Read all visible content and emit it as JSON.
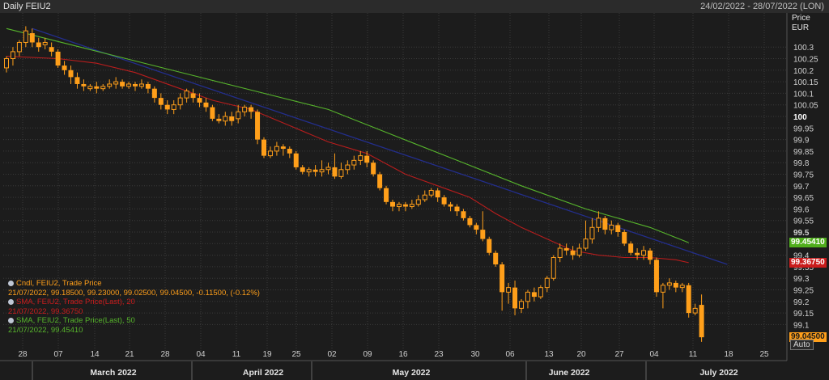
{
  "header": {
    "title": "Daily FEIU2",
    "date_range": "24/02/2022 - 28/07/2022 (LON)"
  },
  "axis": {
    "price_label": "Price",
    "currency_label": "EUR",
    "auto_label": "Auto"
  },
  "badges": {
    "sma50": "99.45410",
    "sma20": "99.36750",
    "last": "99.04500"
  },
  "legend": {
    "cndl_title": "Cndl, FEIU2, Trade Price",
    "cndl_values": "21/07/2022, 99.18500, 99.23000, 99.02500, 99.04500, -0.11500, (-0.12%)",
    "sma20_title": "SMA, FEIU2, Trade Price(Last), 20",
    "sma20_values": "21/07/2022, 99.36750",
    "sma50_title": "SMA, FEIU2, Trade Price(Last), 50",
    "sma50_values": "21/07/2022, 99.45410"
  },
  "colors": {
    "background": "#1c1c1c",
    "candle": "#ff9f1a",
    "sma20": "#b81d1d",
    "sma50": "#57b52c",
    "trend": "#232e8c",
    "grid": "#3a3a3a",
    "last_badge": "#ff9f1a",
    "sma20_badge": "#c91c1c",
    "sma50_badge": "#4fae1c"
  },
  "chart_data": {
    "type": "candlestick",
    "ylim": [
      99.0,
      100.4
    ],
    "y_ticks": [
      "100.3",
      "100.25",
      "100.2",
      "100.15",
      "100.1",
      "100.05",
      "100",
      "99.95",
      "99.9",
      "99.85",
      "99.8",
      "99.75",
      "99.7",
      "99.65",
      "99.6",
      "99.55",
      "99.5",
      "99.45",
      "99.4",
      "99.35",
      "99.3",
      "99.25",
      "99.2",
      "99.15",
      "99.1"
    ],
    "x_day_ticks": [
      "28",
      "07",
      "14",
      "21",
      "28",
      "04",
      "11",
      "19",
      "25",
      "02",
      "09",
      "16",
      "23",
      "30",
      "06",
      "13",
      "20",
      "27",
      "04",
      "11",
      "18",
      "25"
    ],
    "x_month_labels": [
      "March 2022",
      "April 2022",
      "May 2022",
      "June 2022",
      "July 2022"
    ],
    "candles": [
      [
        100.21,
        100.25,
        100.19,
        100.26
      ],
      [
        100.25,
        100.28,
        100.22,
        100.3
      ],
      [
        100.28,
        100.32,
        100.26,
        100.33
      ],
      [
        100.32,
        100.37,
        100.3,
        100.39
      ],
      [
        100.36,
        100.32,
        100.3,
        100.38
      ],
      [
        100.32,
        100.3,
        100.28,
        100.34
      ],
      [
        100.31,
        100.32,
        100.29,
        100.34
      ],
      [
        100.3,
        100.28,
        100.26,
        100.32
      ],
      [
        100.28,
        100.22,
        100.21,
        100.29
      ],
      [
        100.22,
        100.2,
        100.18,
        100.24
      ],
      [
        100.2,
        100.17,
        100.14,
        100.22
      ],
      [
        100.17,
        100.14,
        100.12,
        100.19
      ],
      [
        100.14,
        100.13,
        100.11,
        100.16
      ],
      [
        100.12,
        100.13,
        100.11,
        100.14
      ],
      [
        100.13,
        100.12,
        100.1,
        100.15
      ],
      [
        100.12,
        100.13,
        100.11,
        100.14
      ],
      [
        100.13,
        100.14,
        100.12,
        100.16
      ],
      [
        100.14,
        100.15,
        100.12,
        100.17
      ],
      [
        100.15,
        100.13,
        100.12,
        100.16
      ],
      [
        100.13,
        100.14,
        100.12,
        100.15
      ],
      [
        100.14,
        100.13,
        100.11,
        100.15
      ],
      [
        100.13,
        100.14,
        100.12,
        100.16
      ],
      [
        100.14,
        100.12,
        100.1,
        100.15
      ],
      [
        100.12,
        100.08,
        100.06,
        100.13
      ],
      [
        100.08,
        100.05,
        100.03,
        100.1
      ],
      [
        100.05,
        100.03,
        100.01,
        100.07
      ],
      [
        100.03,
        100.05,
        100.01,
        100.07
      ],
      [
        100.05,
        100.08,
        100.03,
        100.1
      ],
      [
        100.08,
        100.11,
        100.06,
        100.12
      ],
      [
        100.1,
        100.08,
        100.06,
        100.12
      ],
      [
        100.08,
        100.06,
        100.04,
        100.1
      ],
      [
        100.06,
        100.04,
        100.02,
        100.08
      ],
      [
        100.04,
        99.99,
        99.98,
        100.05
      ],
      [
        99.99,
        99.98,
        99.97,
        100.01
      ],
      [
        99.98,
        100.0,
        99.96,
        100.02
      ],
      [
        100.0,
        99.98,
        99.96,
        100.02
      ],
      [
        99.99,
        100.02,
        99.97,
        100.05
      ],
      [
        100.02,
        100.04,
        100.0,
        100.05
      ],
      [
        100.04,
        100.02,
        99.99,
        100.05
      ],
      [
        100.02,
        99.9,
        99.88,
        100.03
      ],
      [
        99.9,
        99.83,
        99.82,
        99.91
      ],
      [
        99.83,
        99.85,
        99.82,
        99.87
      ],
      [
        99.85,
        99.87,
        99.83,
        99.89
      ],
      [
        99.87,
        99.86,
        99.83,
        99.88
      ],
      [
        99.86,
        99.84,
        99.82,
        99.87
      ],
      [
        99.84,
        99.78,
        99.77,
        99.85
      ],
      [
        99.78,
        99.76,
        99.75,
        99.79
      ],
      [
        99.76,
        99.77,
        99.74,
        99.78
      ],
      [
        99.77,
        99.76,
        99.74,
        99.79
      ],
      [
        99.76,
        99.77,
        99.74,
        99.81
      ],
      [
        99.77,
        99.78,
        99.75,
        99.8
      ],
      [
        99.78,
        99.74,
        99.73,
        99.84
      ],
      [
        99.74,
        99.77,
        99.73,
        99.8
      ],
      [
        99.77,
        99.79,
        99.75,
        99.81
      ],
      [
        99.79,
        99.81,
        99.77,
        99.83
      ],
      [
        99.81,
        99.83,
        99.79,
        99.85
      ],
      [
        99.83,
        99.8,
        99.78,
        99.85
      ],
      [
        99.8,
        99.75,
        99.74,
        99.81
      ],
      [
        99.75,
        99.69,
        99.68,
        99.76
      ],
      [
        99.69,
        99.63,
        99.62,
        99.7
      ],
      [
        99.63,
        99.61,
        99.59,
        99.64
      ],
      [
        99.61,
        99.62,
        99.59,
        99.63
      ],
      [
        99.62,
        99.61,
        99.59,
        99.63
      ],
      [
        99.61,
        99.62,
        99.6,
        99.64
      ],
      [
        99.62,
        99.64,
        99.61,
        99.66
      ],
      [
        99.64,
        99.66,
        99.63,
        99.68
      ],
      [
        99.66,
        99.68,
        99.65,
        99.69
      ],
      [
        99.68,
        99.65,
        99.63,
        99.69
      ],
      [
        99.65,
        99.62,
        99.61,
        99.66
      ],
      [
        99.62,
        99.61,
        99.59,
        99.63
      ],
      [
        99.61,
        99.59,
        99.57,
        99.62
      ],
      [
        99.59,
        99.56,
        99.55,
        99.6
      ],
      [
        99.56,
        99.53,
        99.52,
        99.57
      ],
      [
        99.53,
        99.51,
        99.49,
        99.54
      ],
      [
        99.51,
        99.47,
        99.46,
        99.59
      ],
      [
        99.47,
        99.41,
        99.4,
        99.48
      ],
      [
        99.41,
        99.36,
        99.35,
        99.42
      ],
      [
        99.36,
        99.24,
        99.16,
        99.37
      ],
      [
        99.24,
        99.26,
        99.19,
        99.28
      ],
      [
        99.26,
        99.17,
        99.14,
        99.29
      ],
      [
        99.17,
        99.2,
        99.15,
        99.21
      ],
      [
        99.2,
        99.24,
        99.17,
        99.25
      ],
      [
        99.24,
        99.22,
        99.2,
        99.26
      ],
      [
        99.22,
        99.26,
        99.21,
        99.27
      ],
      [
        99.26,
        99.3,
        99.24,
        99.31
      ],
      [
        99.3,
        99.39,
        99.29,
        99.4
      ],
      [
        99.39,
        99.43,
        99.37,
        99.45
      ],
      [
        99.43,
        99.42,
        99.4,
        99.45
      ],
      [
        99.42,
        99.4,
        99.38,
        99.44
      ],
      [
        99.4,
        99.43,
        99.39,
        99.45
      ],
      [
        99.43,
        99.47,
        99.42,
        99.55
      ],
      [
        99.47,
        99.52,
        99.45,
        99.56
      ],
      [
        99.52,
        99.56,
        99.5,
        99.59
      ],
      [
        99.56,
        99.51,
        99.49,
        99.57
      ],
      [
        99.51,
        99.53,
        99.49,
        99.55
      ],
      [
        99.53,
        99.5,
        99.48,
        99.54
      ],
      [
        99.5,
        99.45,
        99.44,
        99.51
      ],
      [
        99.45,
        99.41,
        99.4,
        99.46
      ],
      [
        99.41,
        99.4,
        99.38,
        99.43
      ],
      [
        99.4,
        99.42,
        99.38,
        99.44
      ],
      [
        99.42,
        99.38,
        99.36,
        99.43
      ],
      [
        99.38,
        99.24,
        99.22,
        99.39
      ],
      [
        99.24,
        99.27,
        99.17,
        99.28
      ],
      [
        99.27,
        99.28,
        99.25,
        99.3
      ],
      [
        99.28,
        99.26,
        99.24,
        99.29
      ],
      [
        99.26,
        99.27,
        99.24,
        99.28
      ],
      [
        99.27,
        99.15,
        99.13,
        99.28
      ],
      [
        99.15,
        99.17,
        99.14,
        99.19
      ],
      [
        99.185,
        99.045,
        99.025,
        99.23
      ]
    ],
    "sma20": [
      [
        0,
        100.26
      ],
      [
        8,
        100.25
      ],
      [
        14,
        100.23
      ],
      [
        20,
        100.19
      ],
      [
        26,
        100.13
      ],
      [
        32,
        100.07
      ],
      [
        38,
        100.03
      ],
      [
        44,
        99.96
      ],
      [
        50,
        99.89
      ],
      [
        56,
        99.84
      ],
      [
        62,
        99.75
      ],
      [
        68,
        99.69
      ],
      [
        72,
        99.65
      ],
      [
        76,
        99.58
      ],
      [
        80,
        99.52
      ],
      [
        84,
        99.47
      ],
      [
        88,
        99.42
      ],
      [
        92,
        99.4
      ],
      [
        96,
        99.39
      ],
      [
        100,
        99.39
      ],
      [
        104,
        99.38
      ],
      [
        106,
        99.3675
      ]
    ],
    "sma50": [
      [
        0,
        100.38
      ],
      [
        10,
        100.31
      ],
      [
        20,
        100.24
      ],
      [
        30,
        100.17
      ],
      [
        40,
        100.1
      ],
      [
        50,
        100.03
      ],
      [
        60,
        99.92
      ],
      [
        70,
        99.81
      ],
      [
        80,
        99.7
      ],
      [
        90,
        99.6
      ],
      [
        100,
        99.52
      ],
      [
        106,
        99.4541
      ]
    ],
    "trend": [
      [
        4,
        100.38
      ],
      [
        112,
        99.36
      ]
    ]
  }
}
